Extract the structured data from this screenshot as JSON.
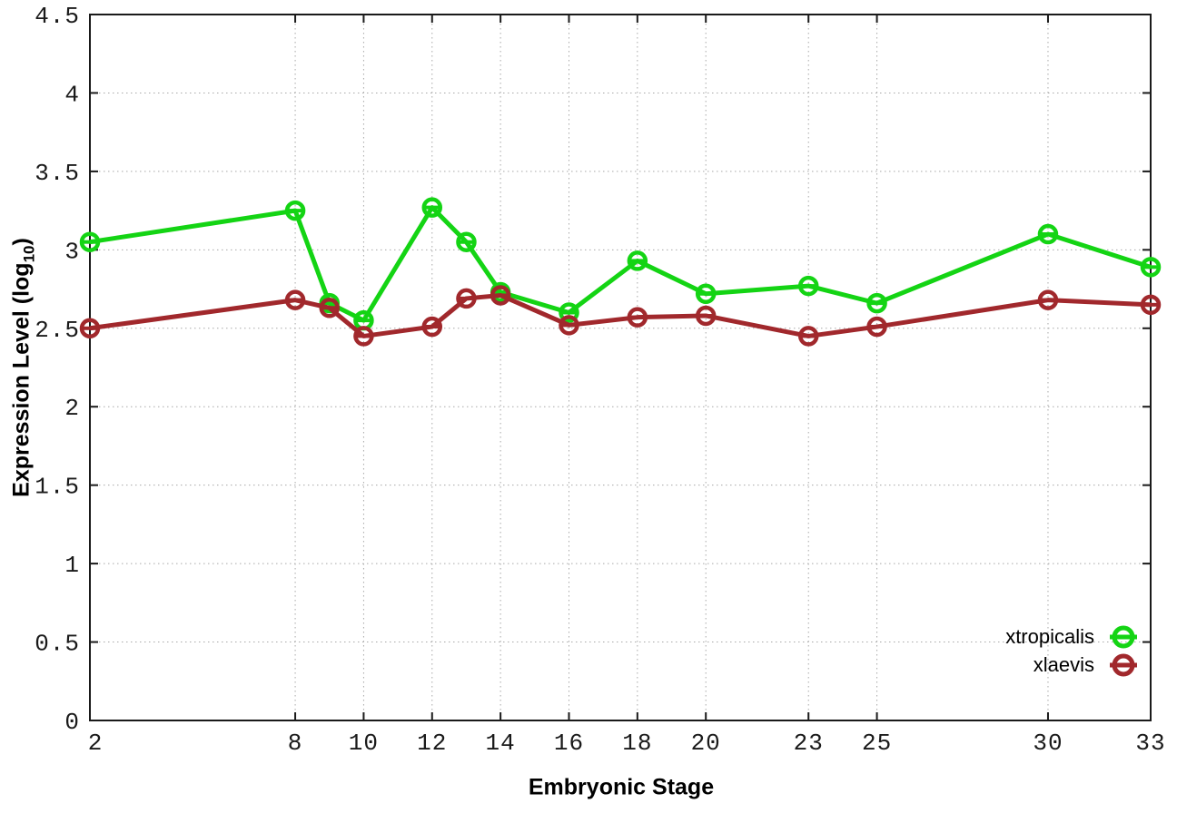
{
  "figure": {
    "xlabel": "Embryonic Stage",
    "ylabel_prefix": "Expression Level (log",
    "ylabel_sub": "10",
    "ylabel_suffix": ")",
    "ylabel_full": "Expression Level (log10)"
  },
  "chart_data": {
    "type": "line",
    "title": "",
    "xlabel": "Embryonic Stage",
    "ylabel": "Expression Level (log10)",
    "xlim": [
      2,
      33
    ],
    "ylim": [
      0,
      4.5
    ],
    "grid": true,
    "legend_position": "bottom-right",
    "marker": "open-circle-with-horizontal-dash",
    "x": [
      2,
      8,
      9,
      10,
      12,
      13,
      14,
      16,
      18,
      20,
      23,
      25,
      30,
      33
    ],
    "xticks": [
      2,
      8,
      10,
      12,
      14,
      16,
      18,
      20,
      23,
      25,
      30,
      33
    ],
    "xtick_labels": [
      "2",
      "8",
      "10",
      "12",
      "14",
      "16",
      "18",
      "20",
      "23",
      "25",
      "30",
      "33"
    ],
    "yticks": [
      0,
      0.5,
      1,
      1.5,
      2,
      2.5,
      3,
      3.5,
      4,
      4.5
    ],
    "ytick_labels": [
      "0",
      "0.5",
      "1",
      "1.5",
      "2",
      "2.5",
      "3",
      "3.5",
      "4",
      "4.5"
    ],
    "series": [
      {
        "name": "xtropicalis",
        "color": "#14d414",
        "values": [
          3.05,
          3.25,
          2.66,
          2.55,
          3.27,
          3.05,
          2.73,
          2.6,
          2.93,
          2.72,
          2.77,
          2.66,
          3.1,
          2.89
        ]
      },
      {
        "name": "xlaevis",
        "color": "#a1282c",
        "values": [
          2.5,
          2.68,
          2.63,
          2.45,
          2.51,
          2.69,
          2.71,
          2.52,
          2.57,
          2.58,
          2.45,
          2.51,
          2.68,
          2.65
        ]
      }
    ],
    "colors": {
      "grid": "#a8a8a8",
      "border": "#1a1a1a",
      "tick_text": "#1a1a1a"
    }
  }
}
